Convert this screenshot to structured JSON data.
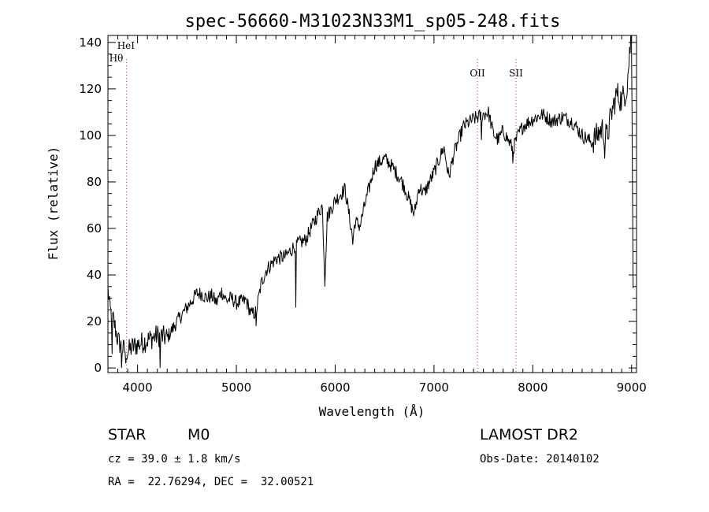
{
  "chart_data": {
    "type": "line",
    "title": "spec-56660-M31023N33M1_sp05-248.fits",
    "xlabel": "Wavelength (Å)",
    "ylabel": "Flux (relative)",
    "xlim": [
      3700,
      9050
    ],
    "ylim": [
      -2,
      143
    ],
    "xticks": [
      4000,
      5000,
      6000,
      7000,
      8000,
      9000
    ],
    "yticks": [
      0,
      20,
      40,
      60,
      80,
      100,
      120,
      140
    ],
    "grid": false,
    "line_color": "#000000",
    "marker_color": "#cc3333",
    "spectrum_anchors": {
      "x": [
        3700,
        3720,
        3760,
        3800,
        3850,
        3900,
        3950,
        4000,
        4100,
        4200,
        4300,
        4400,
        4500,
        4600,
        4650,
        4700,
        4750,
        4800,
        4850,
        4900,
        4950,
        5000,
        5100,
        5150,
        5200,
        5250,
        5300,
        5400,
        5500,
        5600,
        5700,
        5800,
        5870,
        5895,
        5920,
        6000,
        6100,
        6180,
        6200,
        6250,
        6300,
        6400,
        6500,
        6550,
        6650,
        6700,
        6750,
        6800,
        6850,
        6900,
        7000,
        7100,
        7150,
        7200,
        7300,
        7400,
        7500,
        7550,
        7600,
        7650,
        7700,
        7750,
        7800,
        7850,
        7900,
        8000,
        8100,
        8200,
        8300,
        8400,
        8500,
        8600,
        8650,
        8700,
        8750,
        8800,
        8850,
        8900,
        8950,
        9000,
        9020
      ],
      "y": [
        34,
        25,
        20,
        12,
        8,
        7,
        9,
        10,
        12,
        14,
        13,
        20,
        26,
        32,
        32,
        30,
        31,
        28,
        33,
        29,
        30,
        28,
        29,
        23,
        24,
        36,
        42,
        47,
        48,
        53,
        55,
        64,
        70,
        38,
        65,
        72,
        77,
        55,
        63,
        61,
        70,
        87,
        90,
        88,
        82,
        78,
        72,
        66,
        78,
        75,
        84,
        95,
        82,
        92,
        104,
        107,
        109,
        110,
        101,
        98,
        102,
        98,
        94,
        100,
        104,
        107,
        109,
        106,
        108,
        106,
        100,
        97,
        100,
        103,
        99,
        110,
        118,
        115,
        120,
        145,
        10
      ]
    },
    "spectrum_dips": {
      "x": [
        3740,
        3840,
        3880,
        4230,
        5200,
        5600,
        5895,
        6180,
        7480,
        7800,
        8730
      ],
      "y": [
        6,
        0,
        2,
        0,
        18,
        26,
        35,
        53,
        98,
        88,
        90
      ]
    },
    "annotations": [
      {
        "label": "HeI",
        "x": 3889,
        "line": false,
        "label_pos": "upper"
      },
      {
        "label": "Hθ",
        "x": 3889,
        "line": true,
        "label_pos": "lower"
      },
      {
        "label": "OII",
        "x": 7440,
        "line": true,
        "label_pos": "mid"
      },
      {
        "label": "SII",
        "x": 7830,
        "line": true,
        "label_pos": "mid"
      }
    ]
  },
  "info": {
    "class_label": "STAR",
    "subclass_label": "M0",
    "survey": "LAMOST DR2",
    "velocity": "cz = 39.0 ± 1.8 km/s",
    "obs_date": "Obs-Date: 20140102",
    "coords": "RA =  22.76294, DEC =  32.00521"
  }
}
